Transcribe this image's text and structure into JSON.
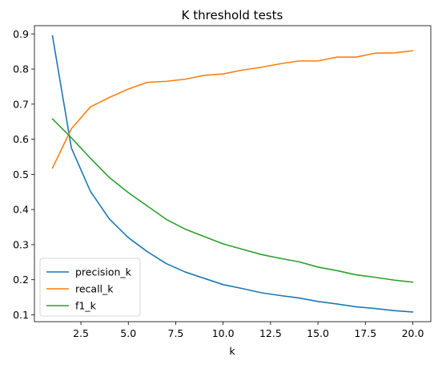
{
  "chart_data": {
    "type": "line",
    "title": "K threshold tests",
    "xlabel": "k",
    "ylabel": "",
    "x": [
      1,
      2,
      3,
      4,
      5,
      6,
      7,
      8,
      9,
      10,
      11,
      12,
      13,
      14,
      15,
      16,
      17,
      18,
      19,
      20
    ],
    "xlim": [
      0.05,
      20.95
    ],
    "ylim": [
      0.0805,
      0.9235
    ],
    "xticks": [
      2.5,
      5.0,
      7.5,
      10.0,
      12.5,
      15.0,
      17.5,
      20.0
    ],
    "xtick_labels": [
      "2.5",
      "5.0",
      "7.5",
      "10.0",
      "12.5",
      "15.0",
      "17.5",
      "20.0"
    ],
    "yticks": [
      0.1,
      0.2,
      0.3,
      0.4,
      0.5,
      0.6,
      0.7,
      0.8,
      0.9
    ],
    "ytick_labels": [
      "0.1",
      "0.2",
      "0.3",
      "0.4",
      "0.5",
      "0.6",
      "0.7",
      "0.8",
      "0.9"
    ],
    "grid": false,
    "legend_position": "lower-left",
    "series": [
      {
        "name": "precision_k",
        "color": "#1f77b4",
        "values": [
          0.895,
          0.575,
          0.452,
          0.373,
          0.32,
          0.28,
          0.246,
          0.222,
          0.204,
          0.186,
          0.175,
          0.163,
          0.155,
          0.148,
          0.138,
          0.131,
          0.123,
          0.118,
          0.112,
          0.108
        ]
      },
      {
        "name": "recall_k",
        "color": "#ff7f0e",
        "values": [
          0.518,
          0.63,
          0.692,
          0.719,
          0.743,
          0.762,
          0.765,
          0.771,
          0.782,
          0.786,
          0.797,
          0.805,
          0.815,
          0.823,
          0.823,
          0.834,
          0.834,
          0.845,
          0.846,
          0.852
        ]
      },
      {
        "name": "f1_k",
        "color": "#2ca02c",
        "values": [
          0.658,
          0.604,
          0.546,
          0.491,
          0.448,
          0.41,
          0.372,
          0.344,
          0.323,
          0.302,
          0.287,
          0.272,
          0.261,
          0.251,
          0.236,
          0.226,
          0.214,
          0.207,
          0.199,
          0.193
        ]
      }
    ]
  }
}
